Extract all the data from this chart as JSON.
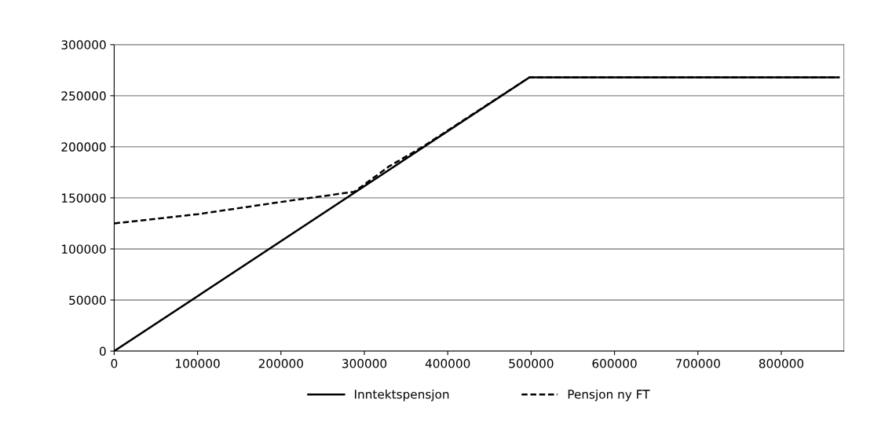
{
  "chart_data": {
    "type": "line",
    "series": [
      {
        "name": "Inntektspensjon",
        "color": "#000000",
        "line_style": "solid",
        "x": [
          0,
          498000,
          869000
        ],
        "values": [
          0,
          268000,
          268000
        ]
      },
      {
        "name": "Pensjon ny FT",
        "color": "#000000",
        "line_style": "dashed",
        "x": [
          0,
          100000,
          200000,
          288000,
          330000,
          370000,
          498000,
          869000
        ],
        "values": [
          125000,
          134000,
          146000,
          156000,
          181000,
          200000,
          268000,
          268000
        ]
      }
    ],
    "xlim": [
      0,
      875000
    ],
    "xticks": [
      0,
      100000,
      200000,
      300000,
      400000,
      500000,
      600000,
      700000,
      800000
    ],
    "ylim": [
      0,
      300000
    ],
    "yticks": [
      0,
      50000,
      100000,
      150000,
      200000,
      250000,
      300000
    ],
    "grid": "y",
    "legend": "bottom",
    "marker": "none"
  }
}
